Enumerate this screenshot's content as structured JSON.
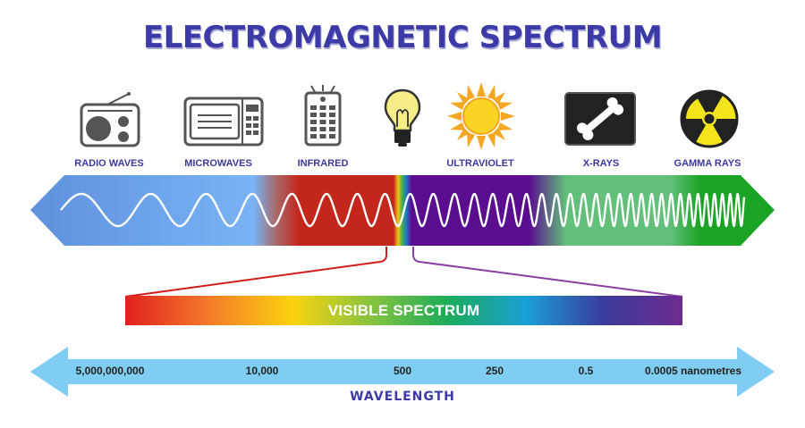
{
  "title": "ELECTROMAGNETIC SPECTRUM",
  "bands": [
    {
      "label": "RADIO WAVES",
      "icon": "radio-icon"
    },
    {
      "label": "MICROWAVES",
      "icon": "microwave-icon"
    },
    {
      "label": "INFRARED",
      "icon": "remote-control-icon"
    },
    {
      "label": "",
      "icon": "light-bulb-icon"
    },
    {
      "label": "ULTRAVIOLET",
      "icon": "sun-icon"
    },
    {
      "label": "X-RAYS",
      "icon": "bone-xray-icon"
    },
    {
      "label": "GAMMA RAYS",
      "icon": "radiation-icon"
    }
  ],
  "visible_spectrum": {
    "label": "VISIBLE SPECTRUM"
  },
  "wavelength": {
    "title": "WAVELENGTH",
    "values": [
      "5,000,000,000",
      "10,000",
      "500",
      "250",
      "0.5",
      "0.0005 nanometres"
    ]
  },
  "colors": {
    "title": "#3b3aa6",
    "radio": "#6d9ee8",
    "microwave": "#79b3f5",
    "infrared": "#c3271c",
    "ultraviolet": "#5b0d90",
    "xray": "#62c07a",
    "gamma": "#1aa324",
    "axis": "#7fcdf0"
  }
}
